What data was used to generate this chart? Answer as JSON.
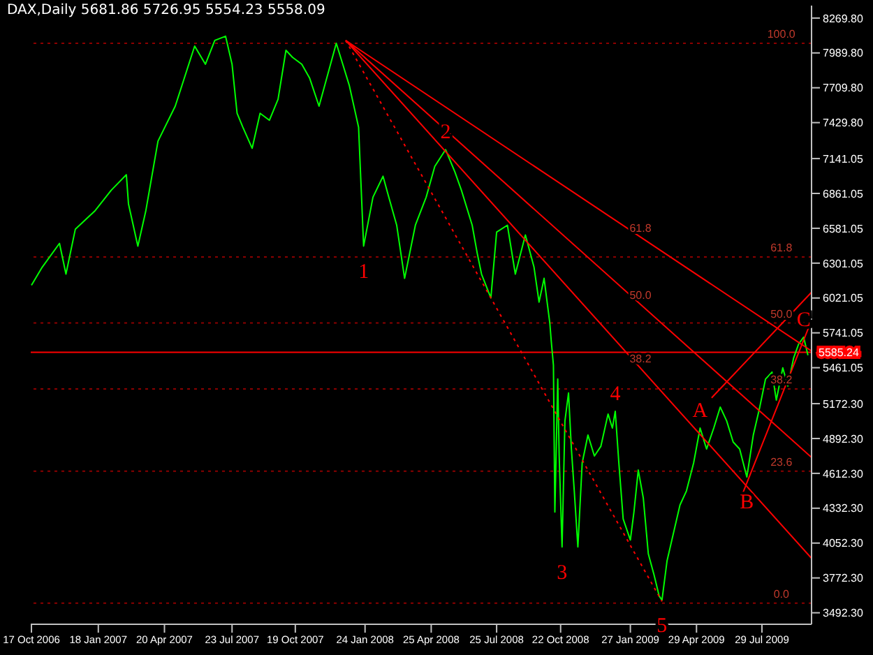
{
  "chart_data": {
    "type": "line",
    "title": "DAX,Daily 5681.86 5726.95 5554.23 5558.09",
    "xlim": [
      "2006-10-16",
      "2009-10-06"
    ],
    "xticks": [
      {
        "value": "2006-10-17",
        "label": "17 Oct 2006"
      },
      {
        "value": "2007-01-18",
        "label": "18 Jan 2007"
      },
      {
        "value": "2007-04-20",
        "label": "20 Apr 2007"
      },
      {
        "value": "2007-07-23",
        "label": "23 Jul 2007"
      },
      {
        "value": "2007-10-19",
        "label": "19 Oct 2007"
      },
      {
        "value": "2008-01-24",
        "label": "24 Jan 2008"
      },
      {
        "value": "2008-04-25",
        "label": "25 Apr 2008"
      },
      {
        "value": "2008-07-25",
        "label": "25 Jul 2008"
      },
      {
        "value": "2008-10-22",
        "label": "22 Oct 2008"
      },
      {
        "value": "2009-01-27",
        "label": "27 Jan 2009"
      },
      {
        "value": "2009-04-29",
        "label": "29 Apr 2009"
      },
      {
        "value": "2009-07-29",
        "label": "29 Jul 2009"
      }
    ],
    "ylim": [
      3400,
      8370
    ],
    "yticks": [
      {
        "value": 3492.3,
        "label": "3492.30"
      },
      {
        "value": 3772.3,
        "label": "3772.30"
      },
      {
        "value": 4052.3,
        "label": "4052.30"
      },
      {
        "value": 4332.3,
        "label": "4332.30"
      },
      {
        "value": 4612.3,
        "label": "4612.30"
      },
      {
        "value": 4892.3,
        "label": "4892.30"
      },
      {
        "value": 5172.3,
        "label": "5172.30"
      },
      {
        "value": 5461.05,
        "label": "5461.05"
      },
      {
        "value": 5741.05,
        "label": "5741.05"
      },
      {
        "value": 6021.05,
        "label": "6021.05"
      },
      {
        "value": 6301.05,
        "label": "6301.05"
      },
      {
        "value": 6581.05,
        "label": "6581.05"
      },
      {
        "value": 6861.05,
        "label": "6861.05"
      },
      {
        "value": 7141.05,
        "label": "7141.05"
      },
      {
        "value": 7429.8,
        "label": "7429.80"
      },
      {
        "value": 7709.8,
        "label": "7709.80"
      },
      {
        "value": 7989.8,
        "label": "7989.80"
      },
      {
        "value": 8269.8,
        "label": "8269.80"
      }
    ],
    "series": [
      {
        "color": "#00ff00",
        "x": [
          "2006-10-17",
          "2006-11-01",
          "2006-11-25",
          "2006-12-04",
          "2006-12-17",
          "2007-01-13",
          "2007-02-05",
          "2007-02-26",
          "2007-03-01",
          "2007-03-14",
          "2007-03-25",
          "2007-04-11",
          "2007-05-05",
          "2007-06-01",
          "2007-06-16",
          "2007-06-29",
          "2007-07-14",
          "2007-07-23",
          "2007-07-30",
          "2007-08-07",
          "2007-08-20",
          "2007-08-31",
          "2007-09-13",
          "2007-09-25",
          "2007-10-06",
          "2007-10-15",
          "2007-10-28",
          "2007-11-08",
          "2007-11-21",
          "2007-12-15",
          "2007-12-24",
          "2008-01-02",
          "2008-01-15",
          "2008-01-22",
          "2008-02-04",
          "2008-02-18",
          "2008-02-26",
          "2008-03-08",
          "2008-03-19",
          "2008-04-03",
          "2008-04-18",
          "2008-04-30",
          "2008-05-15",
          "2008-05-28",
          "2008-06-06",
          "2008-06-21",
          "2008-06-28",
          "2008-07-04",
          "2008-07-17",
          "2008-07-25",
          "2008-08-09",
          "2008-08-20",
          "2008-09-03",
          "2008-09-15",
          "2008-09-22",
          "2008-09-29",
          "2008-10-07",
          "2008-10-09",
          "2008-10-12",
          "2008-10-14",
          "2008-10-18",
          "2008-10-20",
          "2008-10-24",
          "2008-10-28",
          "2008-11-02",
          "2008-11-06",
          "2008-11-10",
          "2008-11-15",
          "2008-11-21",
          "2008-11-29",
          "2008-12-08",
          "2008-12-17",
          "2008-12-27",
          "2009-01-02",
          "2009-01-06",
          "2009-01-11",
          "2009-01-17",
          "2009-01-27",
          "2009-02-01",
          "2009-02-07",
          "2009-02-14",
          "2009-02-21",
          "2009-03-01",
          "2009-03-08",
          "2009-03-12",
          "2009-03-19",
          "2009-03-28",
          "2009-04-06",
          "2009-04-15",
          "2009-04-25",
          "2009-05-04",
          "2009-05-13",
          "2009-05-23",
          "2009-06-01",
          "2009-06-10",
          "2009-06-19",
          "2009-06-28",
          "2009-07-08",
          "2009-07-17",
          "2009-07-26",
          "2009-08-03",
          "2009-08-12",
          "2009-08-18",
          "2009-08-27",
          "2009-09-03",
          "2009-09-11",
          "2009-09-18",
          "2009-09-25",
          "2009-10-01"
        ],
        "values": [
          6123,
          6269,
          6460,
          6213,
          6573,
          6719,
          6887,
          7011,
          6775,
          6438,
          6719,
          7281,
          7562,
          8045,
          7899,
          8090,
          8124,
          7899,
          7505,
          7393,
          7224,
          7505,
          7449,
          7618,
          8011,
          7955,
          7899,
          7786,
          7562,
          8067,
          7899,
          7730,
          7393,
          6438,
          6831,
          6999,
          6831,
          6606,
          6179,
          6606,
          6831,
          7078,
          7213,
          7033,
          6887,
          6606,
          6381,
          6213,
          6022,
          6550,
          6606,
          6213,
          6527,
          6269,
          5988,
          6179,
          5819,
          5673,
          5482,
          4302,
          5370,
          4752,
          4021,
          5033,
          5258,
          4808,
          4471,
          4021,
          4696,
          4920,
          4752,
          4830,
          5089,
          4976,
          5111,
          4696,
          4246,
          4077,
          4302,
          4639,
          4414,
          3965,
          3796,
          3628,
          3594,
          3909,
          4134,
          4358,
          4471,
          4696,
          4976,
          4808,
          4976,
          5145,
          5033,
          4864,
          4808,
          4583,
          4920,
          5145,
          5370,
          5426,
          5201,
          5460,
          5314,
          5538,
          5651,
          5707,
          5561
        ]
      },
      {
        "color": "#ff0000",
        "x": [
          "2007-12-28",
          "2009-10-06"
        ],
        "values": [
          8090,
          5595
        ]
      },
      {
        "color": "#ff0000",
        "x": [
          "2007-12-28",
          "2009-10-06"
        ],
        "values": [
          8090,
          4740
        ]
      },
      {
        "color": "#ff0000",
        "x": [
          "2007-12-28",
          "2009-10-06"
        ],
        "values": [
          8090,
          3930
        ]
      },
      {
        "color": "#ff0000",
        "line_style": "dotted",
        "x": [
          "2007-12-28",
          "2009-03-12"
        ],
        "values": [
          8090,
          3583
        ]
      },
      {
        "color": "#ff0000",
        "x": [
          "2009-05-20",
          "2009-10-06"
        ],
        "values": [
          5219,
          6067
        ]
      },
      {
        "color": "#ff0000",
        "x": [
          "2009-07-02",
          "2009-10-06"
        ],
        "values": [
          4448,
          5842
        ]
      }
    ],
    "ref_lines": [
      {
        "axis": "y",
        "value": 5585.24,
        "label": "5585.24",
        "color": "#ff0000"
      },
      {
        "axis": "y",
        "value": 8067,
        "color": "#8b0000",
        "line_style": "dotted"
      },
      {
        "axis": "y",
        "value": 6350,
        "color": "#8b0000",
        "line_style": "dotted"
      },
      {
        "axis": "y",
        "value": 5820,
        "color": "#8b0000",
        "line_style": "dotted"
      },
      {
        "axis": "y",
        "value": 5290,
        "color": "#8b0000",
        "line_style": "dotted"
      },
      {
        "axis": "y",
        "value": 4630,
        "color": "#8b0000",
        "line_style": "dotted"
      },
      {
        "axis": "y",
        "value": 3570,
        "color": "#8b0000",
        "line_style": "dotted"
      }
    ],
    "annotations": [
      {
        "text": "1",
        "x": "2008-01-22",
        "y": 6438
      },
      {
        "text": "2",
        "x": "2008-05-15",
        "y": 7213
      },
      {
        "text": "3",
        "x": "2008-10-24",
        "y": 4021
      },
      {
        "text": "4",
        "x": "2009-01-06",
        "y": 5111
      },
      {
        "text": "5",
        "x": "2009-03-12",
        "y": 3594
      },
      {
        "text": "A",
        "x": "2009-05-04",
        "y": 4976
      },
      {
        "text": "B",
        "x": "2009-07-08",
        "y": 4583
      },
      {
        "text": "C",
        "x": "2009-09-25",
        "y": 5707
      },
      {
        "text": "61.8",
        "x": "2009-02-10",
        "y": 6510
      },
      {
        "text": "50.0",
        "x": "2009-02-10",
        "y": 5970
      },
      {
        "text": "38.2",
        "x": "2009-02-10",
        "y": 5460
      },
      {
        "text": "100.0",
        "x": "2009-08-25",
        "y": 8067
      },
      {
        "text": "61.8",
        "x": "2009-08-25",
        "y": 6350
      },
      {
        "text": "50.0",
        "x": "2009-08-25",
        "y": 5820
      },
      {
        "text": "38.2",
        "x": "2009-08-25",
        "y": 5290
      },
      {
        "text": "23.6",
        "x": "2009-08-25",
        "y": 4630
      },
      {
        "text": "0.0",
        "x": "2009-08-25",
        "y": 3570
      }
    ]
  }
}
